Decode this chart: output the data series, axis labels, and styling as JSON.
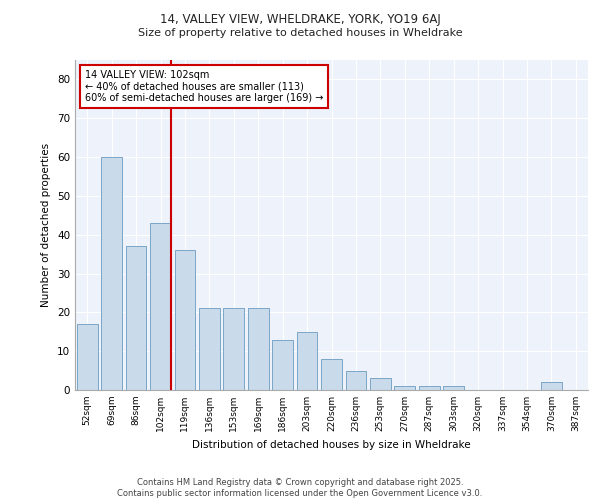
{
  "title1": "14, VALLEY VIEW, WHELDRAKE, YORK, YO19 6AJ",
  "title2": "Size of property relative to detached houses in Wheldrake",
  "xlabel": "Distribution of detached houses by size in Wheldrake",
  "ylabel": "Number of detached properties",
  "categories": [
    "52sqm",
    "69sqm",
    "86sqm",
    "102sqm",
    "119sqm",
    "136sqm",
    "153sqm",
    "169sqm",
    "186sqm",
    "203sqm",
    "220sqm",
    "236sqm",
    "253sqm",
    "270sqm",
    "287sqm",
    "303sqm",
    "320sqm",
    "337sqm",
    "354sqm",
    "370sqm",
    "387sqm"
  ],
  "values": [
    17,
    60,
    37,
    43,
    36,
    21,
    21,
    21,
    13,
    15,
    8,
    5,
    3,
    1,
    1,
    1,
    0,
    0,
    0,
    2,
    0
  ],
  "bar_color": "#c9daea",
  "bar_edge_color": "#6a9cc0",
  "background_color": "#eef2fa",
  "grid_color": "#ffffff",
  "vline_color": "#cc0000",
  "vline_index": 3,
  "annotation_text": "14 VALLEY VIEW: 102sqm\n← 40% of detached houses are smaller (113)\n60% of semi-detached houses are larger (169) →",
  "annotation_box_color": "#ffffff",
  "annotation_edge_color": "#cc0000",
  "ylim": [
    0,
    85
  ],
  "yticks": [
    0,
    10,
    20,
    30,
    40,
    50,
    60,
    70,
    80
  ],
  "footnote": "Contains HM Land Registry data © Crown copyright and database right 2025.\nContains public sector information licensed under the Open Government Licence v3.0."
}
